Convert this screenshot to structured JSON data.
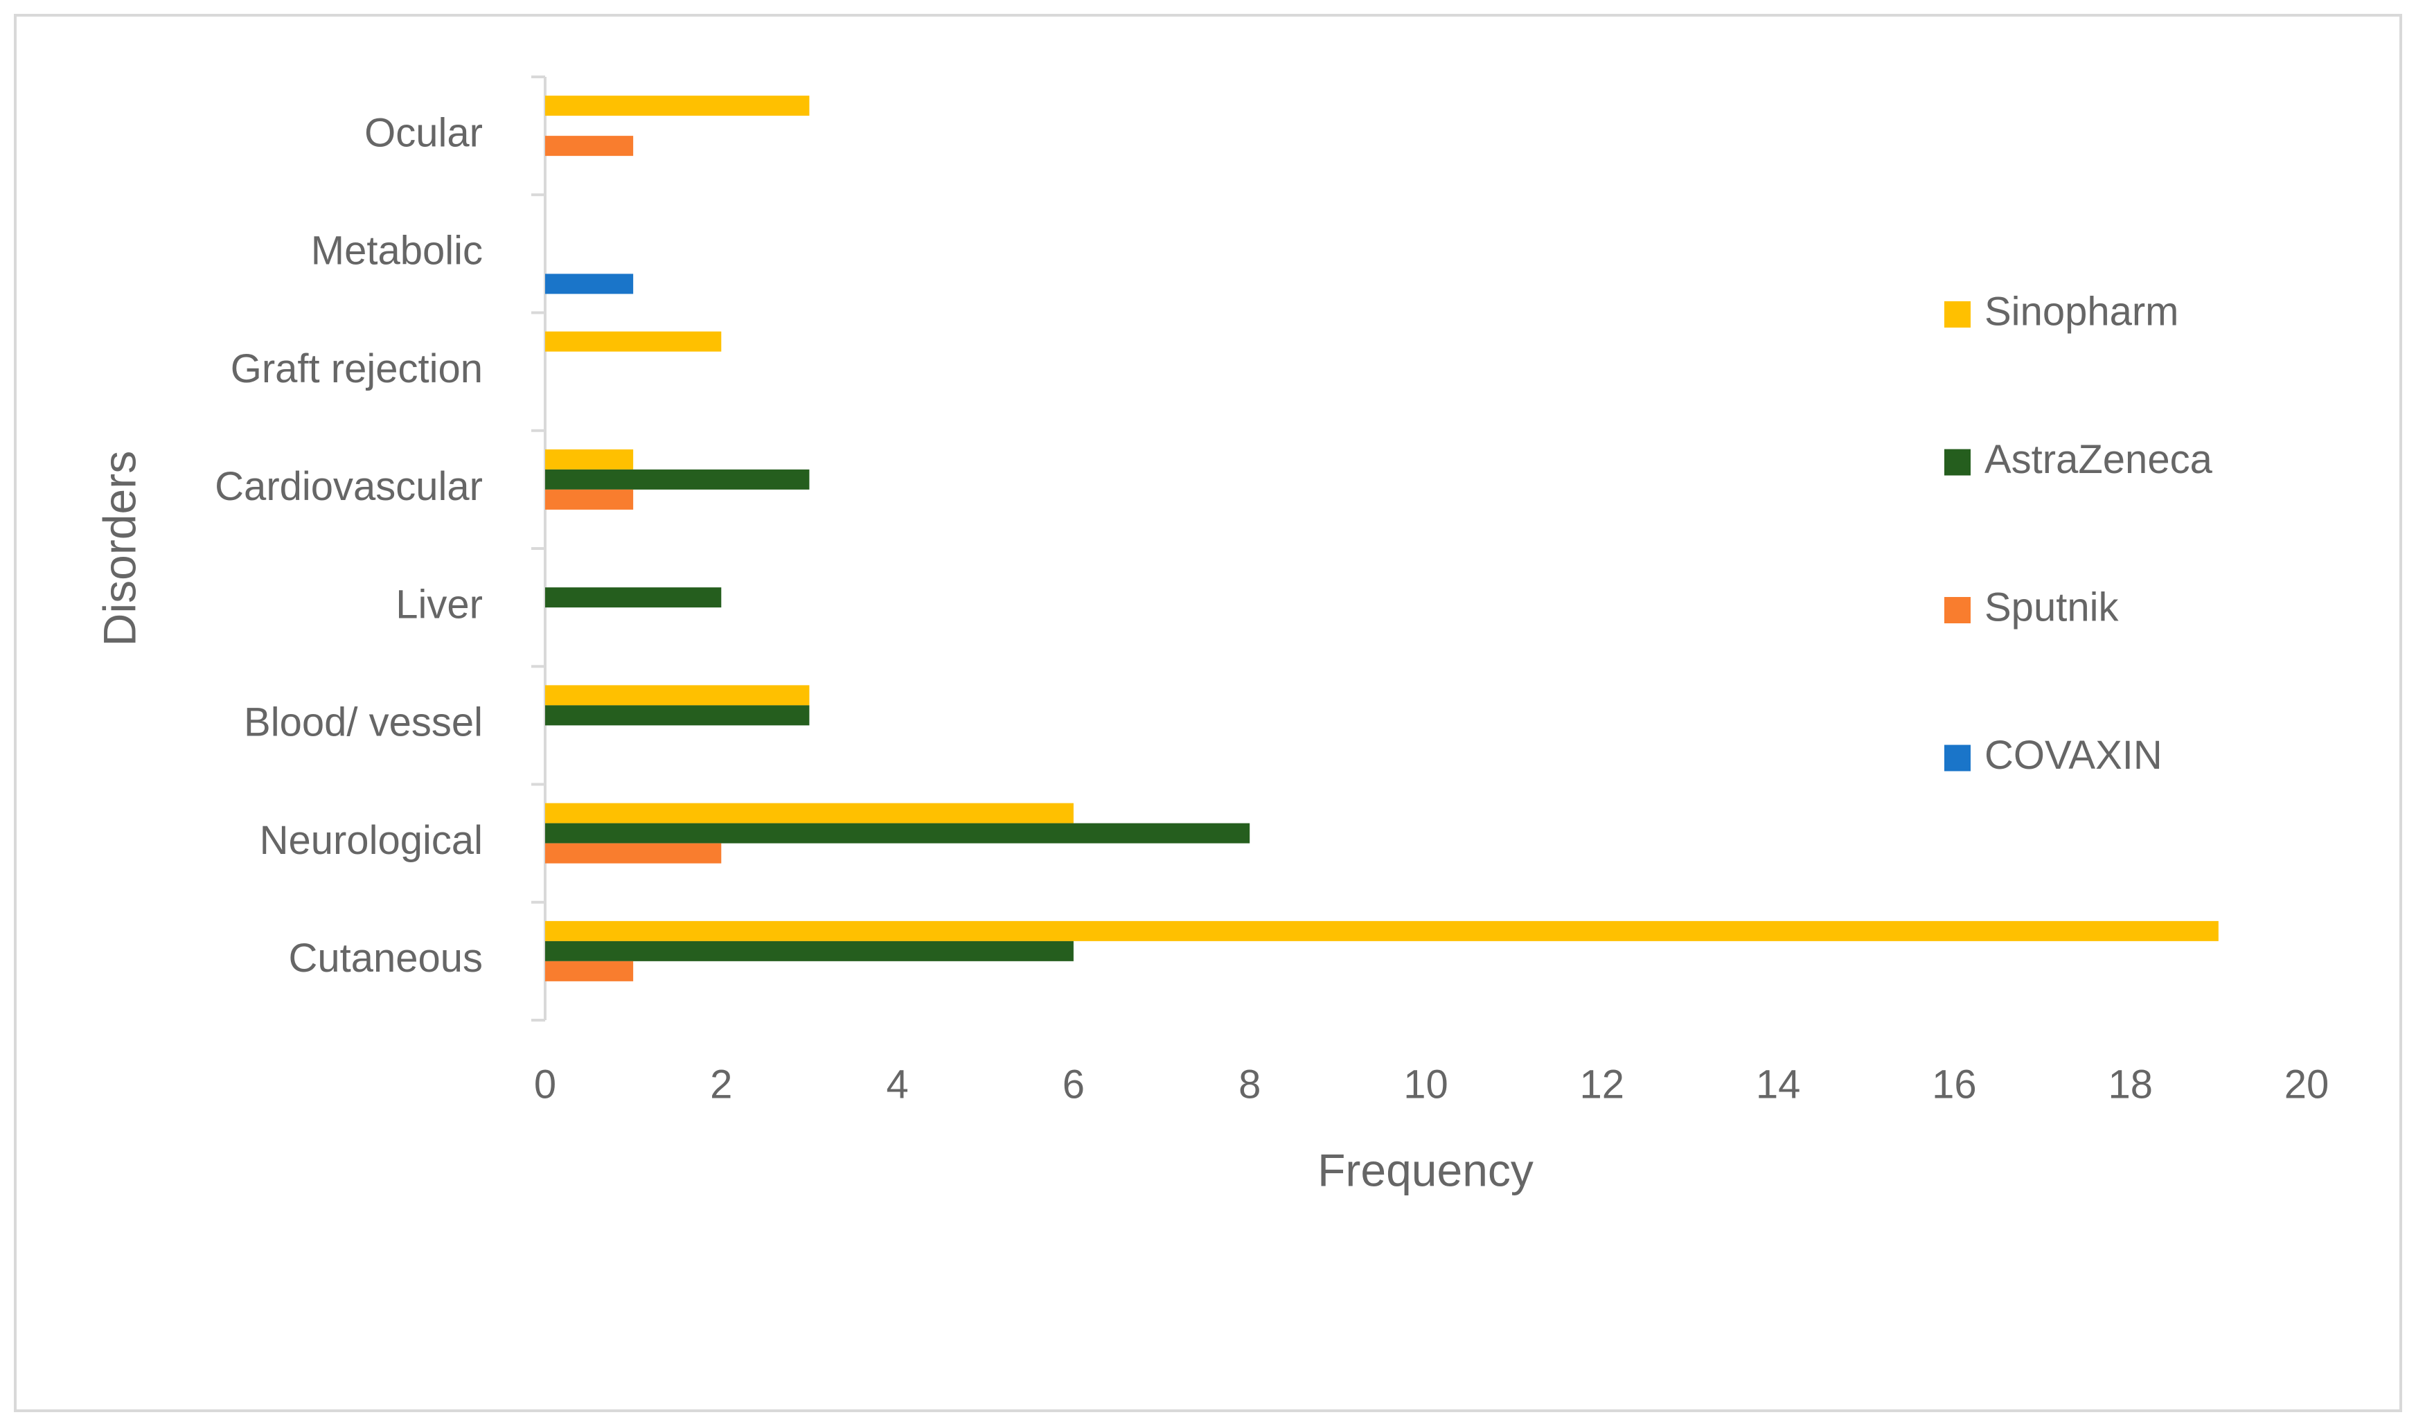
{
  "chart_data": {
    "type": "hbar",
    "x_label": "Frequency",
    "y_label": "Disorders",
    "categories": [
      "Cutaneous",
      "Neurological",
      "Blood/ vessel",
      "Liver",
      "Cardiovascular",
      "Graft rejection",
      "Metabolic",
      "Ocular"
    ],
    "series": [
      {
        "name": "Sinopharm",
        "color": "#ffc000",
        "values": [
          19,
          6,
          3,
          0,
          1,
          2,
          0,
          3
        ]
      },
      {
        "name": "AstraZeneca",
        "color": "#255e1e",
        "values": [
          6,
          8,
          3,
          2,
          3,
          0,
          0,
          0
        ]
      },
      {
        "name": "Sputnik",
        "color": "#f97d2e",
        "values": [
          1,
          2,
          0,
          0,
          1,
          0,
          0,
          1
        ]
      },
      {
        "name": "COVAXIN",
        "color": "#1a75c9",
        "values": [
          0,
          0,
          0,
          0,
          0,
          0,
          1,
          0
        ]
      }
    ],
    "xlim": [
      0,
      20
    ],
    "xticks": [
      0,
      2,
      4,
      6,
      8,
      10,
      12,
      14,
      16,
      18,
      20
    ],
    "grid": false,
    "legend": "right"
  }
}
